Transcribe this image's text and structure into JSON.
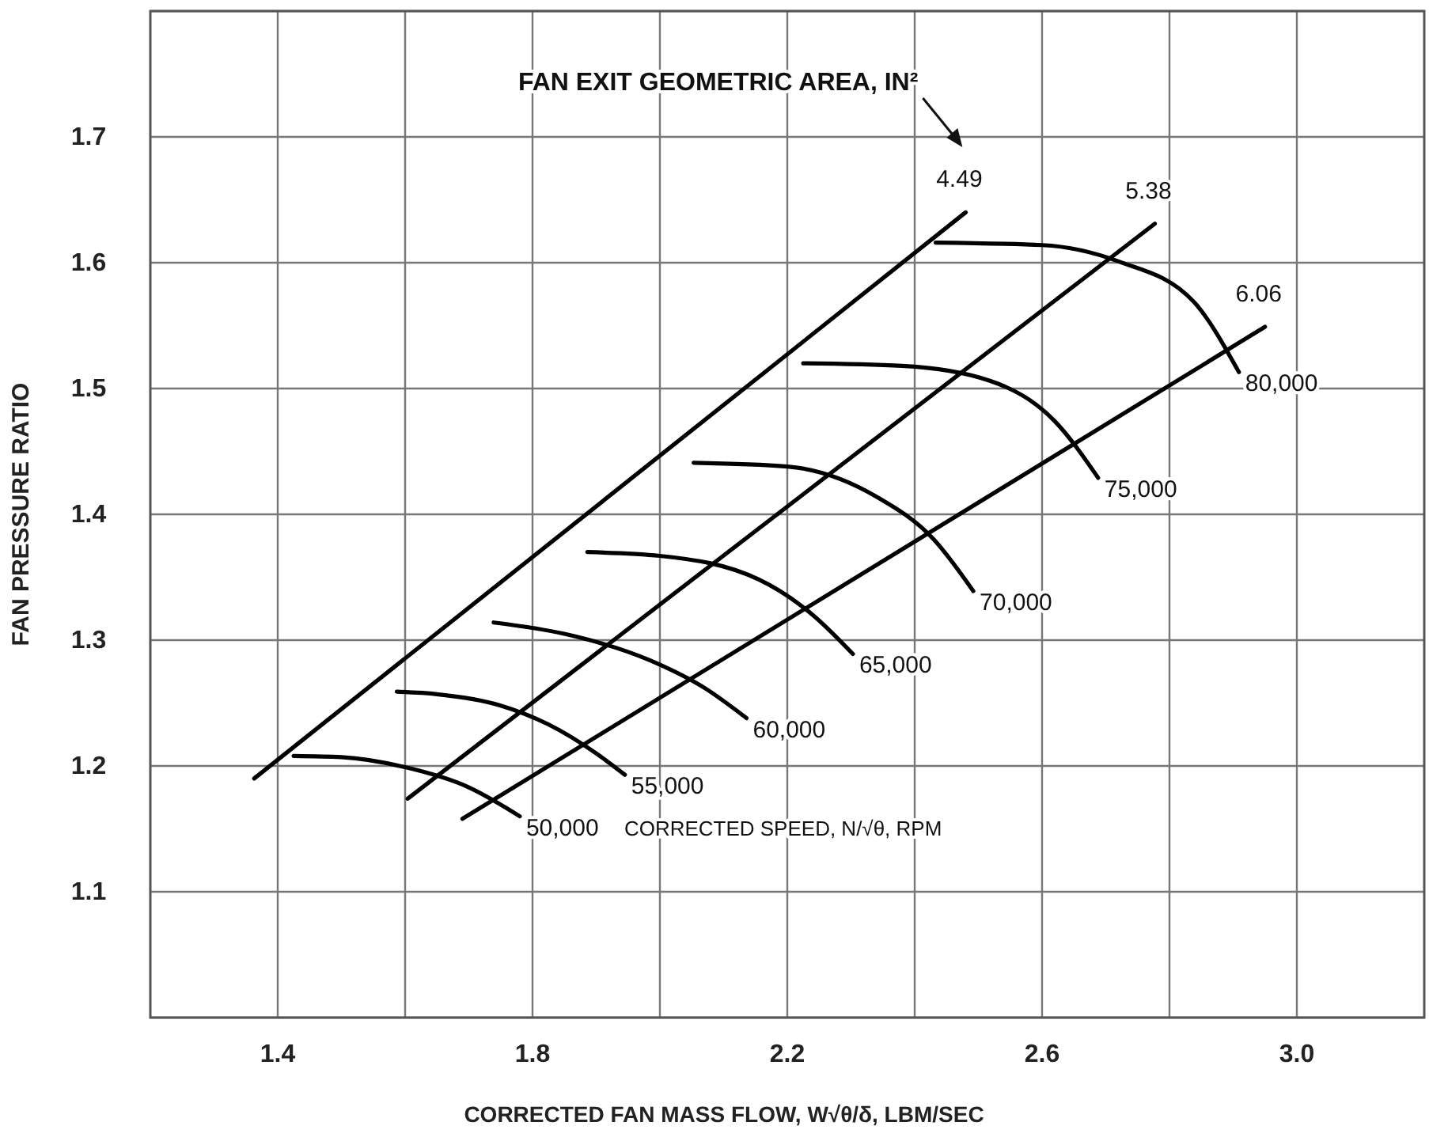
{
  "chart_data": {
    "type": "line",
    "xlabel": "CORRECTED FAN MASS FLOW, W√θ/δ, LBM/SEC",
    "ylabel": "FAN PRESSURE RATIO",
    "annotations": [
      "FAN EXIT GEOMETRIC AREA, IN²",
      "CORRECTED SPEED, N/√θ, RPM"
    ],
    "xlim": [
      1.2,
      3.2
    ],
    "ylim": [
      1.0,
      1.8
    ],
    "xticks": [
      1.4,
      {
        "value": 1.6,
        "label": null
      },
      1.8,
      {
        "value": 2.0,
        "label": null
      },
      2.2,
      {
        "value": 2.4,
        "label": null
      },
      2.6,
      {
        "value": 2.8,
        "label": null
      },
      {
        "value": 3.0,
        "label": "3.0"
      }
    ],
    "yticks": [
      {
        "value": 1.0,
        "label": null
      },
      1.1,
      1.2,
      1.3,
      1.4,
      1.5,
      1.6,
      1.7,
      {
        "value": 1.8,
        "label": null
      }
    ],
    "grid": true,
    "marker": "none",
    "line_style": "solid",
    "series": [
      {
        "name": "4.49",
        "color": "#000000",
        "x": [
          1.363,
          2.48
        ],
        "values": [
          1.19,
          1.64
        ]
      },
      {
        "name": "5.38",
        "color": "#000000",
        "x": [
          1.604,
          2.777
        ],
        "values": [
          1.174,
          1.631
        ]
      },
      {
        "name": "6.06",
        "color": "#000000",
        "x": [
          1.69,
          2.95
        ],
        "values": [
          1.158,
          1.549
        ]
      },
      {
        "name": "50,000",
        "color": "#000000",
        "x": [
          1.425,
          1.5,
          1.6,
          1.7,
          1.78
        ],
        "values": [
          1.208,
          1.207,
          1.199,
          1.183,
          1.16
        ]
      },
      {
        "name": "55,000",
        "color": "#000000",
        "x": [
          1.587,
          1.65,
          1.75,
          1.825,
          1.9,
          1.945
        ],
        "values": [
          1.259,
          1.257,
          1.248,
          1.233,
          1.21,
          1.193
        ]
      },
      {
        "name": "60,000",
        "color": "#000000",
        "x": [
          1.739,
          1.85,
          1.984,
          2.07,
          2.136
        ],
        "values": [
          1.314,
          1.305,
          1.284,
          1.262,
          1.238
        ]
      },
      {
        "name": "65,000",
        "color": "#000000",
        "x": [
          1.886,
          2.0,
          2.156,
          2.24,
          2.303
        ],
        "values": [
          1.37,
          1.367,
          1.348,
          1.32,
          1.289
        ]
      },
      {
        "name": "70,000",
        "color": "#000000",
        "x": [
          2.053,
          2.2,
          2.34,
          2.43,
          2.492
        ],
        "values": [
          1.441,
          1.438,
          1.414,
          1.38,
          1.339
        ]
      },
      {
        "name": "75,000",
        "color": "#000000",
        "x": [
          2.225,
          2.38,
          2.519,
          2.62,
          2.688
        ],
        "values": [
          1.52,
          1.518,
          1.506,
          1.474,
          1.429
        ]
      },
      {
        "name": "80,000",
        "color": "#000000",
        "x": [
          2.433,
          2.6,
          2.72,
          2.838,
          2.909
        ],
        "values": [
          1.616,
          1.614,
          1.601,
          1.569,
          1.513
        ]
      }
    ]
  }
}
